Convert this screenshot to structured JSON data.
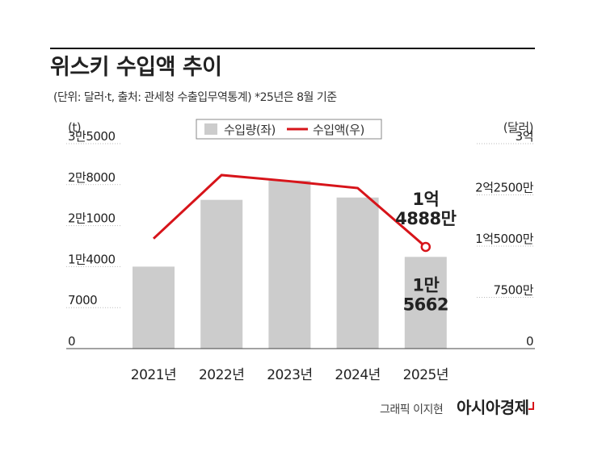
{
  "chart_data": {
    "type": "bar-line",
    "title": "위스키 수입액 추이",
    "subtitle": "(단위: 달러·t, 출처: 관세청 수출입무역통계)  *25년은 8월 기준",
    "y_label": "(t)",
    "y2_label": "(달러)",
    "categories": [
      "2021년",
      "2022년",
      "2023년",
      "2024년",
      "2025년"
    ],
    "series": [
      {
        "name": "수입량(좌)",
        "type": "bar",
        "color": "#cccccc",
        "axis": "y",
        "values": [
          14000,
          25400,
          28700,
          25800,
          15662
        ],
        "value_labels": [
          null,
          null,
          null,
          null,
          "1만 5662"
        ]
      },
      {
        "name": "수입액(우)",
        "type": "line",
        "color": "#d7141a",
        "axis": "y2",
        "values": [
          161000000,
          254000000,
          245000000,
          235000000,
          148880000
        ],
        "value_labels": [
          null,
          null,
          null,
          null,
          "1억 4888만"
        ]
      }
    ],
    "ylim": [
      0,
      35000
    ],
    "yticks": [
      0,
      7000,
      {
        "value": 14000,
        "label": "1만4000"
      },
      {
        "value": 21000,
        "label": "2만1000"
      },
      {
        "value": 28000,
        "label": "2만8000"
      },
      {
        "value": 35000,
        "label": "3만5000"
      }
    ],
    "y2lim": [
      0,
      300000000
    ],
    "y2ticks": [
      0,
      {
        "value": 75000000,
        "label": "7500만"
      },
      {
        "value": 150000000,
        "label": "1억5000만"
      },
      {
        "value": 225000000,
        "label": "2억2500만"
      },
      {
        "value": 300000000,
        "label": "3억"
      }
    ],
    "credit": "그래픽 이지현",
    "source_logo": "아시아경제"
  }
}
